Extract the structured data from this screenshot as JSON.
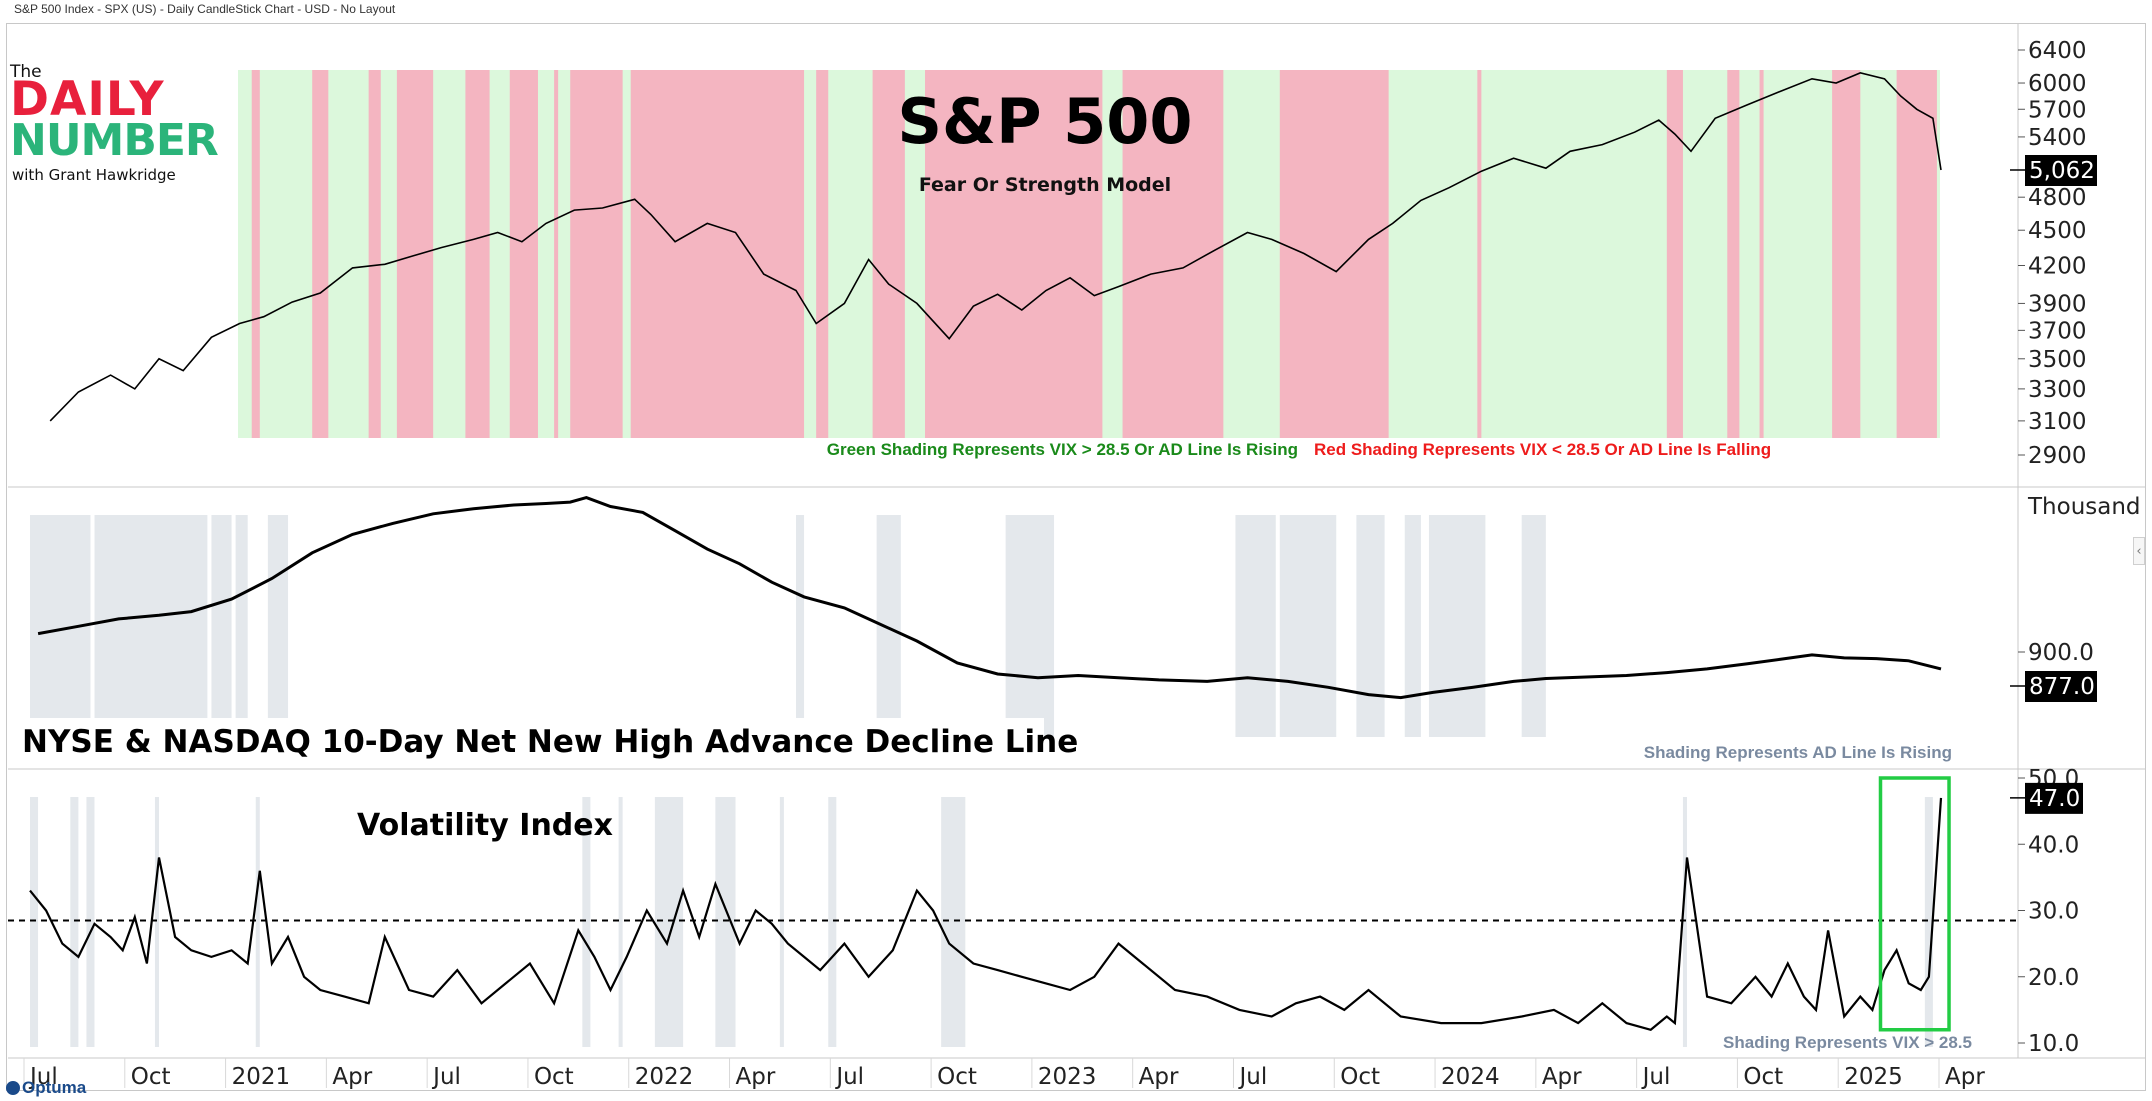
{
  "window": {
    "title": "S&P 500 Index - SPX (US) - Daily CandleStick Chart - USD - No Layout"
  },
  "logo": {
    "line1": "The",
    "line2": "DAILY",
    "line3": "NUMBER",
    "line4": "with Grant Hawkridge"
  },
  "branding": {
    "optuma": "Optuma"
  },
  "colors": {
    "green_shade": "#dcf8dc",
    "red_shade": "#f4b5c1",
    "gray_shade": "#e4e8ec",
    "green_text": "#1a8a1a",
    "red_text": "#ee1c1c",
    "gray_text": "#7a8aa0",
    "box_green": "#22cc44"
  },
  "chart_data": [
    {
      "type": "line",
      "panel": "top",
      "title": "S&P 500",
      "subtitle": "Fear Or Strength Model",
      "ylabel": "",
      "ylim": [
        2800,
        6600
      ],
      "y_ticks": [
        "6400",
        "6000",
        "5700",
        "5400",
        "4800",
        "4500",
        "4200",
        "3900",
        "3700",
        "3500",
        "3300",
        "3100",
        "2900"
      ],
      "y_tick_values": [
        6400,
        6000,
        5700,
        5400,
        4800,
        4500,
        4200,
        3900,
        3700,
        3500,
        3300,
        3100,
        2900
      ],
      "last_value_label": "5,062",
      "last_value": 5062,
      "legend_green": "Green Shading Represents VIX > 28.5 Or AD Line Is Rising",
      "legend_red": "Red Shading Represents VIX < 28.5 Or AD Line Is Falling",
      "series": [
        {
          "name": "S&P 500",
          "x": [
            2020.55,
            2020.62,
            2020.7,
            2020.76,
            2020.82,
            2020.88,
            2020.95,
            2021.02,
            2021.08,
            2021.15,
            2021.22,
            2021.3,
            2021.38,
            2021.45,
            2021.52,
            2021.6,
            2021.66,
            2021.72,
            2021.78,
            2021.85,
            2021.92,
            2022.0,
            2022.04,
            2022.1,
            2022.18,
            2022.25,
            2022.32,
            2022.4,
            2022.45,
            2022.52,
            2022.58,
            2022.63,
            2022.7,
            2022.78,
            2022.84,
            2022.9,
            2022.96,
            2023.02,
            2023.08,
            2023.14,
            2023.2,
            2023.28,
            2023.36,
            2023.44,
            2023.52,
            2023.58,
            2023.66,
            2023.74,
            2023.82,
            2023.88,
            2023.95,
            2024.02,
            2024.1,
            2024.18,
            2024.26,
            2024.32,
            2024.4,
            2024.48,
            2024.54,
            2024.58,
            2024.62,
            2024.68,
            2024.76,
            2024.84,
            2024.92,
            2024.98,
            2025.04,
            2025.1,
            2025.14,
            2025.18,
            2025.22,
            2025.24
          ],
          "values": [
            3100,
            3280,
            3390,
            3300,
            3500,
            3420,
            3650,
            3750,
            3800,
            3910,
            3980,
            4180,
            4210,
            4280,
            4350,
            4420,
            4480,
            4400,
            4560,
            4680,
            4700,
            4780,
            4640,
            4400,
            4560,
            4480,
            4130,
            4000,
            3750,
            3900,
            4250,
            4050,
            3900,
            3640,
            3880,
            3970,
            3850,
            4000,
            4100,
            3960,
            4030,
            4130,
            4180,
            4330,
            4480,
            4420,
            4300,
            4150,
            4420,
            4560,
            4770,
            4890,
            5050,
            5180,
            5080,
            5250,
            5320,
            5450,
            5580,
            5430,
            5250,
            5600,
            5750,
            5900,
            6050,
            6000,
            6120,
            6050,
            5850,
            5700,
            5600,
            5062
          ]
        }
      ]
    },
    {
      "type": "line",
      "panel": "middle",
      "title": "NYSE & NASDAQ 10-Day Net New High Advance Decline Line",
      "unit_label": "Thousand",
      "y_ticks": [
        "900.0"
      ],
      "y_tick_values": [
        900
      ],
      "last_value_label": "877.0",
      "last_value": 877,
      "legend": "Shading Represents AD Line Is Rising",
      "ylim": [
        820,
        1130
      ],
      "series": [
        {
          "name": "AD Line",
          "x": [
            2020.52,
            2020.62,
            2020.72,
            2020.82,
            2020.9,
            2021.0,
            2021.1,
            2021.2,
            2021.3,
            2021.4,
            2021.5,
            2021.6,
            2021.7,
            2021.78,
            2021.84,
            2021.88,
            2021.94,
            2022.02,
            2022.1,
            2022.18,
            2022.26,
            2022.34,
            2022.42,
            2022.52,
            2022.6,
            2022.7,
            2022.8,
            2022.9,
            2023.0,
            2023.1,
            2023.2,
            2023.3,
            2023.42,
            2023.52,
            2023.62,
            2023.72,
            2023.82,
            2023.9,
            2023.98,
            2024.08,
            2024.18,
            2024.26,
            2024.36,
            2024.46,
            2024.56,
            2024.66,
            2024.76,
            2024.84,
            2024.92,
            2025.0,
            2025.08,
            2025.16,
            2025.24
          ],
          "values": [
            925,
            935,
            945,
            950,
            955,
            972,
            1000,
            1035,
            1060,
            1075,
            1088,
            1095,
            1100,
            1102,
            1104,
            1110,
            1098,
            1090,
            1065,
            1040,
            1020,
            995,
            975,
            960,
            940,
            915,
            885,
            870,
            865,
            868,
            865,
            862,
            860,
            865,
            860,
            852,
            842,
            838,
            845,
            852,
            860,
            864,
            866,
            868,
            872,
            877,
            884,
            890,
            896,
            892,
            891,
            888,
            877
          ]
        }
      ]
    },
    {
      "type": "line",
      "panel": "bottom",
      "title": "Volatility Index",
      "ylim": [
        8,
        51
      ],
      "y_ticks": [
        "50.0",
        "40.0",
        "30.0",
        "20.0",
        "10.0"
      ],
      "y_tick_values": [
        50,
        40,
        30,
        20,
        10
      ],
      "last_value_label": "47.0",
      "last_value": 47,
      "threshold": 28.5,
      "legend": "Shading Represents VIX > 28.5",
      "series": [
        {
          "name": "VIX",
          "x": [
            2020.5,
            2020.54,
            2020.58,
            2020.62,
            2020.66,
            2020.7,
            2020.73,
            2020.76,
            2020.79,
            2020.82,
            2020.86,
            2020.9,
            2020.95,
            2021.0,
            2021.04,
            2021.07,
            2021.1,
            2021.14,
            2021.18,
            2021.22,
            2021.28,
            2021.34,
            2021.38,
            2021.44,
            2021.5,
            2021.56,
            2021.62,
            2021.68,
            2021.74,
            2021.8,
            2021.86,
            2021.9,
            2021.94,
            2021.98,
            2022.03,
            2022.08,
            2022.12,
            2022.16,
            2022.2,
            2022.26,
            2022.3,
            2022.34,
            2022.38,
            2022.42,
            2022.46,
            2022.52,
            2022.58,
            2022.64,
            2022.7,
            2022.74,
            2022.78,
            2022.84,
            2022.9,
            2022.96,
            2023.02,
            2023.08,
            2023.14,
            2023.2,
            2023.26,
            2023.34,
            2023.42,
            2023.5,
            2023.58,
            2023.64,
            2023.7,
            2023.76,
            2023.82,
            2023.9,
            2024.0,
            2024.1,
            2024.2,
            2024.28,
            2024.34,
            2024.4,
            2024.46,
            2024.52,
            2024.56,
            2024.58,
            2024.61,
            2024.66,
            2024.72,
            2024.78,
            2024.82,
            2024.86,
            2024.9,
            2024.93,
            2024.96,
            2025.0,
            2025.04,
            2025.07,
            2025.1,
            2025.13,
            2025.16,
            2025.19,
            2025.21,
            2025.24
          ],
          "values": [
            33,
            30,
            25,
            23,
            28,
            26,
            24,
            29,
            22,
            38,
            26,
            24,
            23,
            24,
            22,
            36,
            22,
            26,
            20,
            18,
            17,
            16,
            26,
            18,
            17,
            21,
            16,
            19,
            22,
            16,
            27,
            23,
            18,
            23,
            30,
            25,
            33,
            26,
            34,
            25,
            30,
            28,
            25,
            23,
            21,
            25,
            20,
            24,
            33,
            30,
            25,
            22,
            21,
            20,
            19,
            18,
            20,
            25,
            22,
            18,
            17,
            15,
            14,
            16,
            17,
            15,
            18,
            14,
            13,
            13,
            14,
            15,
            13,
            16,
            13,
            12,
            14,
            13,
            38,
            17,
            16,
            20,
            17,
            22,
            17,
            15,
            27,
            14,
            17,
            15,
            21,
            24,
            19,
            18,
            20,
            47
          ]
        }
      ]
    }
  ],
  "x_axis": {
    "labels": [
      "Jul",
      "Oct",
      "2021",
      "Apr",
      "Jul",
      "Oct",
      "2022",
      "Apr",
      "Jul",
      "Oct",
      "2023",
      "Apr",
      "Jul",
      "Oct",
      "2024",
      "Apr",
      "Jul",
      "Oct",
      "2025",
      "Apr"
    ],
    "positions": [
      2020.5,
      2020.75,
      2021.0,
      2021.25,
      2021.5,
      2021.75,
      2022.0,
      2022.25,
      2022.5,
      2022.75,
      2023.0,
      2023.25,
      2023.5,
      2023.75,
      2024.0,
      2024.25,
      2024.5,
      2024.75,
      2025.0,
      2025.25
    ]
  },
  "shading": {
    "top_red": [
      [
        2020.99,
        2021.0
      ],
      [
        2021.05,
        2021.07
      ],
      [
        2021.2,
        2021.24
      ],
      [
        2021.34,
        2021.37
      ],
      [
        2021.41,
        2021.5
      ],
      [
        2021.58,
        2021.64
      ],
      [
        2021.69,
        2021.76
      ],
      [
        2021.8,
        2021.81
      ],
      [
        2021.84,
        2021.97
      ],
      [
        2021.99,
        2022.42
      ],
      [
        2022.45,
        2022.48
      ],
      [
        2022.59,
        2022.67
      ],
      [
        2022.72,
        2023.16
      ],
      [
        2023.21,
        2023.46
      ],
      [
        2023.6,
        2023.87
      ],
      [
        2024.09,
        2024.1
      ],
      [
        2024.56,
        2024.6
      ],
      [
        2024.71,
        2024.74
      ],
      [
        2024.79,
        2024.8
      ],
      [
        2024.97,
        2025.04
      ],
      [
        2025.13,
        2025.23
      ]
    ],
    "mid_gray": [
      [
        2020.5,
        2020.65
      ],
      [
        2020.66,
        2020.94
      ],
      [
        2020.95,
        2021.0
      ],
      [
        2021.01,
        2021.04
      ],
      [
        2021.09,
        2021.14
      ],
      [
        2022.4,
        2022.42
      ],
      [
        2022.6,
        2022.66
      ],
      [
        2022.92,
        2023.04
      ],
      [
        2023.49,
        2023.59
      ],
      [
        2023.6,
        2023.74
      ],
      [
        2023.79,
        2023.86
      ],
      [
        2023.91,
        2023.95
      ],
      [
        2023.97,
        2024.11
      ],
      [
        2024.2,
        2024.26
      ]
    ],
    "bot_gray": [
      [
        2020.5,
        2020.52
      ],
      [
        2020.6,
        2020.62
      ],
      [
        2020.64,
        2020.66
      ],
      [
        2020.81,
        2020.82
      ],
      [
        2021.06,
        2021.07
      ],
      [
        2021.87,
        2021.89
      ],
      [
        2021.96,
        2021.97
      ],
      [
        2022.05,
        2022.12
      ],
      [
        2022.2,
        2022.25
      ],
      [
        2022.36,
        2022.37
      ],
      [
        2022.48,
        2022.5
      ],
      [
        2022.76,
        2022.82
      ],
      [
        2024.6,
        2024.61
      ],
      [
        2025.2,
        2025.22
      ]
    ]
  },
  "annotation_box": {
    "x_from": 2025.09,
    "x_to": 2025.26,
    "y_from": 12,
    "y_to": 50
  }
}
